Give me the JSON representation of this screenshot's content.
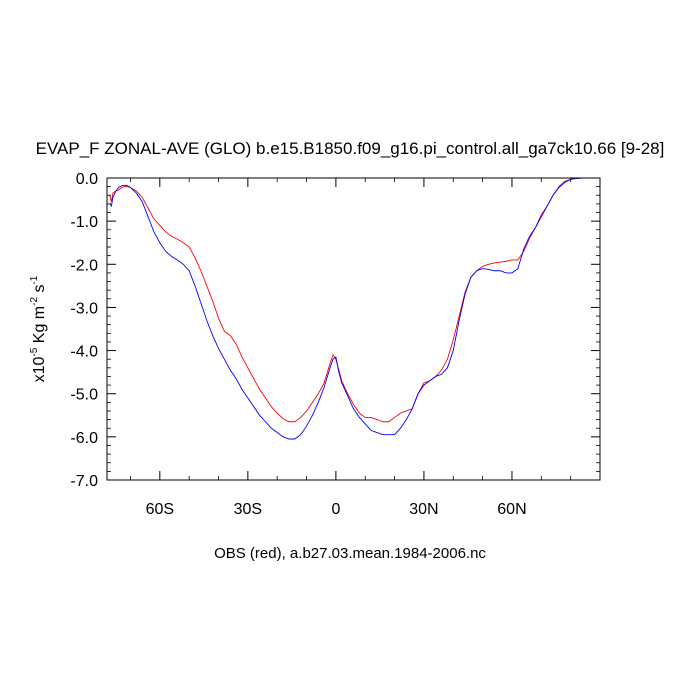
{
  "chart_data": {
    "type": "line",
    "title": "EVAP_F ZONAL-AVE (GLO) b.e15.B1850.f09_g16.pi_control.all_ga7ck10.66 [9-28]",
    "xlabel": "OBS (red), a.b27.03.mean.1984-2006.nc",
    "ylabel": {
      "base": "x10",
      "exp1": "-5",
      "mid": " Kg m",
      "exp2": "-2",
      "mid2": " s",
      "exp3": "-1"
    },
    "xlim": [
      -78,
      90
    ],
    "ylim": [
      -7.0,
      0.0
    ],
    "x_ticks": [
      {
        "value": -60,
        "label": "60S"
      },
      {
        "value": -30,
        "label": "30S"
      },
      {
        "value": 0,
        "label": "0"
      },
      {
        "value": 30,
        "label": "30N"
      },
      {
        "value": 60,
        "label": "60N"
      }
    ],
    "y_ticks": [
      {
        "value": 0.0,
        "label": "0.0"
      },
      {
        "value": -1.0,
        "label": "-1.0"
      },
      {
        "value": -2.0,
        "label": "-2.0"
      },
      {
        "value": -3.0,
        "label": "-3.0"
      },
      {
        "value": -4.0,
        "label": "-4.0"
      },
      {
        "value": -5.0,
        "label": "-5.0"
      },
      {
        "value": -6.0,
        "label": "-6.0"
      },
      {
        "value": -7.0,
        "label": "-7.0"
      }
    ],
    "grid": false,
    "series": [
      {
        "color": "#ff0000",
        "x": [
          -77,
          -76.5,
          -76,
          -75,
          -74,
          -73,
          -72,
          -71,
          -70,
          -68,
          -66,
          -64,
          -62,
          -60,
          -58,
          -56,
          -54,
          -52,
          -50,
          -48,
          -46,
          -44,
          -42,
          -40,
          -38,
          -36,
          -34,
          -32,
          -30,
          -28,
          -26,
          -24,
          -22,
          -20,
          -18,
          -16,
          -14,
          -12,
          -10,
          -8,
          -6,
          -4,
          -2,
          -1,
          0,
          1,
          2,
          4,
          6,
          8,
          10,
          12,
          14,
          16,
          18,
          20,
          22,
          24,
          26,
          28,
          30,
          32,
          34,
          36,
          38,
          40,
          42,
          44,
          46,
          48,
          50,
          52,
          54,
          56,
          58,
          60,
          62,
          64,
          66,
          68,
          70,
          72,
          74,
          76,
          78,
          80,
          82,
          84,
          86,
          88,
          90
        ],
        "y": [
          -0.4,
          -0.55,
          -0.35,
          -0.3,
          -0.28,
          -0.22,
          -0.2,
          -0.2,
          -0.22,
          -0.3,
          -0.45,
          -0.7,
          -0.95,
          -1.1,
          -1.25,
          -1.35,
          -1.42,
          -1.5,
          -1.6,
          -1.85,
          -2.15,
          -2.5,
          -2.85,
          -3.25,
          -3.55,
          -3.65,
          -3.85,
          -4.15,
          -4.4,
          -4.65,
          -4.9,
          -5.1,
          -5.3,
          -5.45,
          -5.58,
          -5.65,
          -5.65,
          -5.55,
          -5.4,
          -5.2,
          -5.0,
          -4.75,
          -4.3,
          -4.1,
          -4.2,
          -4.45,
          -4.7,
          -5.0,
          -5.25,
          -5.45,
          -5.55,
          -5.55,
          -5.6,
          -5.65,
          -5.65,
          -5.55,
          -5.45,
          -5.4,
          -5.35,
          -5.0,
          -4.75,
          -4.7,
          -4.6,
          -4.45,
          -4.2,
          -3.75,
          -3.2,
          -2.65,
          -2.3,
          -2.15,
          -2.05,
          -2.0,
          -1.97,
          -1.95,
          -1.93,
          -1.9,
          -1.9,
          -1.7,
          -1.4,
          -1.15,
          -0.85,
          -0.65,
          -0.4,
          -0.2,
          -0.08,
          -0.03,
          -0.01,
          0.0,
          0.0,
          0.0,
          0.0
        ]
      },
      {
        "color": "#0000ff",
        "x": [
          -77,
          -76.5,
          -76,
          -75,
          -74,
          -73,
          -72,
          -71,
          -70,
          -68,
          -66,
          -64,
          -62,
          -60,
          -58,
          -56,
          -54,
          -52,
          -50,
          -48,
          -46,
          -44,
          -42,
          -40,
          -38,
          -36,
          -34,
          -32,
          -30,
          -28,
          -26,
          -24,
          -22,
          -20,
          -18,
          -16,
          -14,
          -12,
          -10,
          -8,
          -6,
          -4,
          -2,
          -1,
          0,
          1,
          2,
          4,
          6,
          8,
          10,
          12,
          14,
          16,
          18,
          20,
          22,
          24,
          26,
          28,
          30,
          32,
          34,
          36,
          38,
          40,
          42,
          44,
          46,
          48,
          50,
          52,
          54,
          56,
          58,
          60,
          62,
          64,
          66,
          68,
          70,
          72,
          74,
          76,
          78,
          80,
          82,
          84,
          86,
          88,
          90
        ],
        "y": [
          -0.6,
          -0.65,
          -0.45,
          -0.3,
          -0.22,
          -0.18,
          -0.17,
          -0.18,
          -0.22,
          -0.35,
          -0.55,
          -0.9,
          -1.25,
          -1.5,
          -1.7,
          -1.82,
          -1.9,
          -2.0,
          -2.15,
          -2.5,
          -2.9,
          -3.3,
          -3.65,
          -3.95,
          -4.2,
          -4.45,
          -4.65,
          -4.9,
          -5.1,
          -5.3,
          -5.5,
          -5.65,
          -5.8,
          -5.9,
          -6.0,
          -6.05,
          -6.05,
          -5.95,
          -5.75,
          -5.5,
          -5.2,
          -4.85,
          -4.4,
          -4.2,
          -4.15,
          -4.5,
          -4.75,
          -5.05,
          -5.35,
          -5.55,
          -5.7,
          -5.85,
          -5.9,
          -5.95,
          -5.95,
          -5.95,
          -5.8,
          -5.6,
          -5.35,
          -5.0,
          -4.8,
          -4.7,
          -4.6,
          -4.55,
          -4.4,
          -4.0,
          -3.3,
          -2.7,
          -2.3,
          -2.15,
          -2.1,
          -2.12,
          -2.15,
          -2.15,
          -2.2,
          -2.2,
          -2.1,
          -1.65,
          -1.35,
          -1.15,
          -0.9,
          -0.65,
          -0.4,
          -0.22,
          -0.1,
          -0.03,
          -0.01,
          0.0,
          0.0,
          0.0,
          0.0
        ]
      }
    ]
  }
}
